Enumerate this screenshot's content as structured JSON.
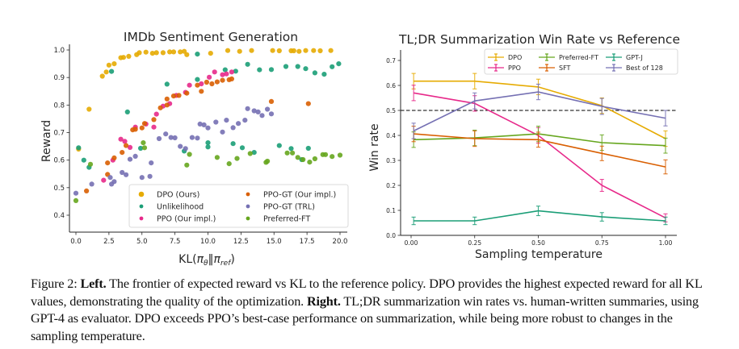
{
  "chart_data": [
    {
      "type": "scatter",
      "title": "IMDb Sentiment Generation",
      "xlabel": "KL(πθ‖πref)",
      "ylabel": "Reward",
      "xlim": [
        -0.8,
        21.0
      ],
      "ylim": [
        0.34,
        1.04
      ],
      "xticks": [
        0.0,
        2.5,
        5.0,
        7.5,
        10.0,
        12.5,
        15.0,
        17.5,
        20.0
      ],
      "xtick_labels": [
        "0.0",
        "2.5",
        "5.0",
        "7.5",
        "10.0",
        "12.5",
        "15.0",
        "17.5",
        "20.0"
      ],
      "yticks": [
        0.4,
        0.5,
        0.6,
        0.7,
        0.8,
        0.9,
        1.0
      ],
      "ytick_labels": [
        "0.4",
        "0.5",
        "0.6",
        "0.7",
        "0.8",
        "0.9",
        "1.0"
      ],
      "legend_position": "lower-right",
      "grid": false,
      "series": [
        {
          "name": "DPO (Ours)",
          "color": "#e6ab02",
          "points": [
            [
              0.2,
              0.64
            ],
            [
              1.0,
              0.785
            ],
            [
              2.0,
              0.905
            ],
            [
              2.3,
              0.92
            ],
            [
              2.5,
              0.945
            ],
            [
              2.9,
              0.95
            ],
            [
              3.4,
              0.972
            ],
            [
              3.6,
              0.973
            ],
            [
              4.0,
              0.977
            ],
            [
              4.6,
              0.983
            ],
            [
              4.8,
              0.99
            ],
            [
              5.3,
              0.992
            ],
            [
              5.8,
              0.988
            ],
            [
              6.1,
              0.99
            ],
            [
              6.6,
              0.99
            ],
            [
              7.1,
              0.993
            ],
            [
              7.4,
              0.993
            ],
            [
              7.9,
              0.993
            ],
            [
              8.2,
              0.995
            ],
            [
              8.4,
              0.983
            ],
            [
              10.2,
              0.988
            ],
            [
              11.5,
              0.998
            ],
            [
              12.4,
              0.995
            ],
            [
              13.3,
              0.998
            ],
            [
              14.9,
              0.998
            ],
            [
              15.4,
              0.997
            ],
            [
              16.3,
              0.997
            ],
            [
              16.5,
              0.997
            ],
            [
              16.9,
              0.995
            ],
            [
              17.4,
              0.998
            ],
            [
              18.0,
              0.998
            ],
            [
              18.5,
              0.997
            ],
            [
              19.3,
              0.998
            ]
          ]
        },
        {
          "name": "Unlikelihood",
          "color": "#1b9e77",
          "points": [
            [
              0.2,
              0.645
            ],
            [
              0.6,
              0.6
            ],
            [
              1.0,
              0.574
            ],
            [
              2.7,
              0.922
            ],
            [
              3.9,
              0.775
            ],
            [
              4.9,
              0.643
            ],
            [
              6.9,
              0.876
            ],
            [
              8.2,
              0.633
            ],
            [
              9.2,
              0.985
            ],
            [
              9.2,
              0.893
            ],
            [
              10.0,
              0.648
            ],
            [
              10.0,
              0.663
            ],
            [
              11.3,
              0.928
            ],
            [
              11.9,
              0.66
            ],
            [
              12.1,
              0.923
            ],
            [
              12.6,
              0.645
            ],
            [
              13.0,
              0.948
            ],
            [
              13.5,
              0.628
            ],
            [
              13.9,
              0.928
            ],
            [
              14.8,
              0.929
            ],
            [
              15.4,
              0.653
            ],
            [
              15.9,
              0.94
            ],
            [
              16.3,
              0.642
            ],
            [
              16.8,
              0.94
            ],
            [
              17.1,
              0.602
            ],
            [
              17.4,
              0.932
            ],
            [
              17.6,
              0.643
            ],
            [
              18.1,
              0.917
            ],
            [
              18.8,
              0.912
            ],
            [
              19.4,
              0.939
            ],
            [
              19.9,
              0.95
            ]
          ]
        },
        {
          "name": "PPO (Our impl.)",
          "color": "#e7298a",
          "points": [
            [
              2.1,
              0.527
            ],
            [
              2.8,
              0.6
            ],
            [
              3.4,
              0.676
            ],
            [
              3.7,
              0.668
            ],
            [
              4.1,
              0.646
            ],
            [
              4.5,
              0.72
            ],
            [
              5.3,
              0.731
            ],
            [
              5.9,
              0.72
            ],
            [
              6.1,
              0.767
            ],
            [
              6.6,
              0.796
            ],
            [
              7.1,
              0.805
            ],
            [
              7.6,
              0.835
            ],
            [
              8.3,
              0.846
            ],
            [
              8.6,
              0.872
            ],
            [
              9.5,
              0.877
            ],
            [
              10.1,
              0.901
            ],
            [
              10.5,
              0.92
            ],
            [
              11.1,
              0.91
            ],
            [
              11.4,
              0.913
            ],
            [
              11.8,
              0.92
            ]
          ]
        },
        {
          "name": "PPO-GT (Our impl.)",
          "color": "#d95f02",
          "points": [
            [
              0.8,
              0.488
            ],
            [
              2.4,
              0.59
            ],
            [
              2.4,
              0.548
            ],
            [
              2.9,
              0.608
            ],
            [
              3.5,
              0.628
            ],
            [
              3.8,
              0.653
            ],
            [
              4.3,
              0.71
            ],
            [
              4.5,
              0.712
            ],
            [
              5.0,
              0.717
            ],
            [
              5.2,
              0.733
            ],
            [
              5.9,
              0.747
            ],
            [
              6.4,
              0.79
            ],
            [
              6.9,
              0.8
            ],
            [
              6.9,
              0.822
            ],
            [
              7.4,
              0.833
            ],
            [
              7.8,
              0.835
            ],
            [
              8.4,
              0.843
            ],
            [
              9.2,
              0.872
            ],
            [
              9.5,
              0.85
            ],
            [
              9.9,
              0.883
            ],
            [
              10.3,
              0.877
            ],
            [
              10.7,
              0.884
            ],
            [
              11.1,
              0.89
            ],
            [
              11.6,
              0.892
            ],
            [
              11.8,
              0.895
            ],
            [
              14.8,
              0.813
            ],
            [
              17.6,
              0.805
            ]
          ]
        },
        {
          "name": "PPO-GT (TRL)",
          "color": "#7570b3",
          "points": [
            [
              0.0,
              0.48
            ],
            [
              1.2,
              0.513
            ],
            [
              2.6,
              0.537
            ],
            [
              2.7,
              0.513
            ],
            [
              2.9,
              0.522
            ],
            [
              3.5,
              0.555
            ],
            [
              3.8,
              0.547
            ],
            [
              4.1,
              0.603
            ],
            [
              4.5,
              0.614
            ],
            [
              5.0,
              0.537
            ],
            [
              5.6,
              0.541
            ],
            [
              5.7,
              0.59
            ],
            [
              6.3,
              0.678
            ],
            [
              6.8,
              0.695
            ],
            [
              7.2,
              0.682
            ],
            [
              7.5,
              0.681
            ],
            [
              7.9,
              0.65
            ],
            [
              8.3,
              0.642
            ],
            [
              8.8,
              0.682
            ],
            [
              9.2,
              0.68
            ],
            [
              9.4,
              0.731
            ],
            [
              9.7,
              0.728
            ],
            [
              10.0,
              0.717
            ],
            [
              10.6,
              0.738
            ],
            [
              11.1,
              0.702
            ],
            [
              11.4,
              0.745
            ],
            [
              11.9,
              0.718
            ],
            [
              12.3,
              0.733
            ],
            [
              12.8,
              0.745
            ],
            [
              13.0,
              0.787
            ],
            [
              13.5,
              0.779
            ],
            [
              13.8,
              0.775
            ],
            [
              14.1,
              0.762
            ],
            [
              14.5,
              0.785
            ],
            [
              14.8,
              0.768
            ]
          ]
        },
        {
          "name": "Preferred-FT",
          "color": "#66a61e",
          "points": [
            [
              0.0,
              0.453
            ],
            [
              1.1,
              0.585
            ],
            [
              5.1,
              0.663
            ],
            [
              5.2,
              0.645
            ],
            [
              8.4,
              0.582
            ],
            [
              8.6,
              0.621
            ],
            [
              10.7,
              0.61
            ],
            [
              11.6,
              0.587
            ],
            [
              12.2,
              0.606
            ],
            [
              13.2,
              0.624
            ],
            [
              14.4,
              0.592
            ],
            [
              14.5,
              0.596
            ],
            [
              16.0,
              0.626
            ],
            [
              16.4,
              0.626
            ],
            [
              16.8,
              0.61
            ],
            [
              17.2,
              0.602
            ],
            [
              17.7,
              0.593
            ],
            [
              18.1,
              0.605
            ],
            [
              18.7,
              0.62
            ],
            [
              18.9,
              0.62
            ],
            [
              19.4,
              0.613
            ],
            [
              20.0,
              0.618
            ]
          ]
        }
      ]
    },
    {
      "type": "line",
      "title": "TL;DR Summarization Win Rate vs Reference",
      "xlabel": "Sampling temperature",
      "ylabel": "Win rate",
      "xlim": [
        -0.06,
        1.06
      ],
      "ylim": [
        0.0,
        0.75
      ],
      "x": [
        0.01,
        0.25,
        0.5,
        0.75,
        1.0
      ],
      "xticks": [
        0.0,
        0.25,
        0.5,
        0.75,
        1.0
      ],
      "xtick_labels": [
        "0.00",
        "0.25",
        "0.50",
        "0.75",
        "1.00"
      ],
      "yticks": [
        0.0,
        0.1,
        0.2,
        0.3,
        0.4,
        0.5,
        0.6,
        0.7
      ],
      "ytick_labels": [
        "0.0",
        "0.1",
        "0.2",
        "0.3",
        "0.4",
        "0.5",
        "0.6",
        "0.7"
      ],
      "reference_line": {
        "y": 0.5,
        "style": "dashed",
        "color": "#000000"
      },
      "legend_position": "top-right",
      "legend_columns": 3,
      "grid": false,
      "series": [
        {
          "name": "DPO",
          "color": "#e6ab02",
          "values": [
            0.617,
            0.617,
            0.594,
            0.519,
            0.387
          ],
          "errors": [
            0.031,
            0.031,
            0.031,
            0.031,
            0.031
          ]
        },
        {
          "name": "PPO",
          "color": "#e7298a",
          "values": [
            0.57,
            0.528,
            0.4,
            0.2,
            0.07
          ],
          "errors": [
            0.031,
            0.031,
            0.031,
            0.024,
            0.016
          ]
        },
        {
          "name": "Preferred-FT",
          "color": "#66a61e",
          "values": [
            0.383,
            0.39,
            0.406,
            0.371,
            0.359
          ],
          "errors": [
            0.031,
            0.031,
            0.031,
            0.031,
            0.03
          ]
        },
        {
          "name": "SFT",
          "color": "#d95f02",
          "values": [
            0.406,
            0.387,
            0.383,
            0.328,
            0.274
          ],
          "errors": [
            0.031,
            0.031,
            0.03,
            0.029,
            0.028
          ]
        },
        {
          "name": "GPT-J",
          "color": "#1b9e77",
          "values": [
            0.058,
            0.058,
            0.098,
            0.074,
            0.058
          ],
          "errors": [
            0.015,
            0.015,
            0.019,
            0.017,
            0.015
          ]
        },
        {
          "name": "Best of 128",
          "color": "#7570b3",
          "values": [
            0.418,
            0.538,
            0.574,
            0.516,
            0.469
          ],
          "errors": [
            0.031,
            0.032,
            0.031,
            0.032,
            0.031
          ]
        }
      ]
    }
  ],
  "caption": {
    "figure_label": "Figure 2:",
    "left_label": "Left.",
    "left_text": " The frontier of expected reward vs KL to the reference policy. DPO provides the highest expected reward for all KL values, demonstrating the quality of the optimization. ",
    "right_label": "Right.",
    "right_text": " TL;DR summarization win rates vs. human-written summaries, using GPT-4 as evaluator. DPO exceeds PPO’s best-case performance on summarization, while being more robust to changes in the sampling temperature."
  }
}
